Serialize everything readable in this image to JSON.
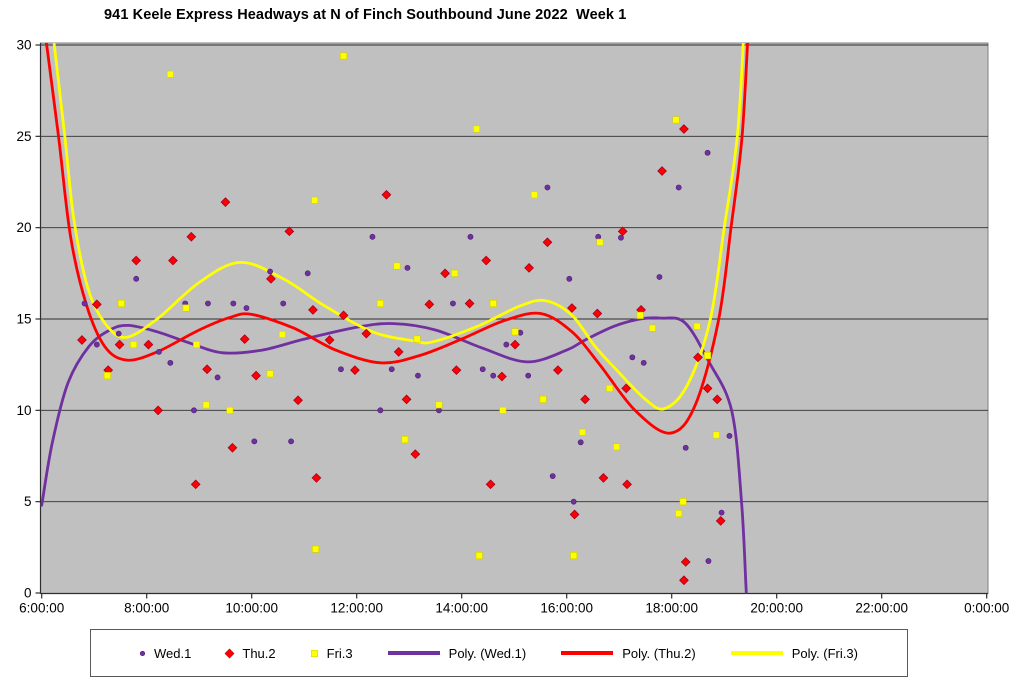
{
  "title": "941 Keele Express Headways at N of Finch Southbound June 2022  Week 1",
  "chart_data": {
    "type": "scatter",
    "title": "941 Keele Express Headways at N of Finch Southbound June 2022  Week 1",
    "plot_background_color": "#C0C0C0",
    "gridline_color": "#2E2E2E",
    "axis_color": "#2E2E2E",
    "border_color": "#808080",
    "legend_position": "bottom",
    "x_axis": {
      "labels": [
        "6:00:00",
        "8:00:00",
        "10:00:00",
        "12:00:00",
        "14:00:00",
        "16:00:00",
        "18:00:00",
        "20:00:00",
        "22:00:00",
        "0:00:00"
      ],
      "start_hour": 6,
      "end_hour": 24,
      "tick_interval_hours": 2
    },
    "y_axis": {
      "min": 0,
      "max": 30,
      "tick_interval": 5,
      "labels": [
        "0",
        "5",
        "10",
        "15",
        "20",
        "25",
        "30"
      ]
    },
    "series": [
      {
        "name": "Wed.1",
        "kind": "points",
        "marker": "dot",
        "color": "#7030A0",
        "edge_color": "#4A2170",
        "points": [
          [
            "6:49",
            15.85
          ],
          [
            "7:03",
            13.6
          ],
          [
            "7:28",
            14.2
          ],
          [
            "7:48",
            17.2
          ],
          [
            "8:14",
            13.2
          ],
          [
            "8:27",
            12.6
          ],
          [
            "8:44",
            15.85
          ],
          [
            "8:54",
            10.0
          ],
          [
            "9:10",
            15.85
          ],
          [
            "9:21",
            11.8
          ],
          [
            "9:39",
            15.85
          ],
          [
            "9:54",
            15.6
          ],
          [
            "10:03",
            8.3
          ],
          [
            "10:21",
            17.6
          ],
          [
            "10:36",
            15.85
          ],
          [
            "10:45",
            8.3
          ],
          [
            "11:04",
            17.5
          ],
          [
            "11:42",
            12.25
          ],
          [
            "12:18",
            19.5
          ],
          [
            "12:27",
            10.0
          ],
          [
            "12:40",
            12.25
          ],
          [
            "12:58",
            17.8
          ],
          [
            "13:10",
            11.9
          ],
          [
            "13:34",
            10.0
          ],
          [
            "13:50",
            15.85
          ],
          [
            "14:10",
            19.5
          ],
          [
            "14:24",
            12.25
          ],
          [
            "14:36",
            11.9
          ],
          [
            "14:51",
            13.6
          ],
          [
            "15:07",
            14.25
          ],
          [
            "15:16",
            11.9
          ],
          [
            "15:38",
            22.2
          ],
          [
            "15:44",
            6.4
          ],
          [
            "16:03",
            17.2
          ],
          [
            "16:08",
            5.0
          ],
          [
            "16:16",
            8.25
          ],
          [
            "16:36",
            19.5
          ],
          [
            "17:02",
            19.45
          ],
          [
            "17:15",
            12.9
          ],
          [
            "17:28",
            12.6
          ],
          [
            "17:46",
            17.3
          ],
          [
            "18:08",
            22.2
          ],
          [
            "18:16",
            7.95
          ],
          [
            "18:41",
            24.1
          ],
          [
            "18:42",
            1.75
          ],
          [
            "18:57",
            4.4
          ],
          [
            "19:06",
            8.6
          ]
        ]
      },
      {
        "name": "Thu.2",
        "kind": "points",
        "marker": "diamond",
        "color": "#FF0000",
        "edge_color": "#A50021",
        "points": [
          [
            "6:46",
            13.85
          ],
          [
            "7:03",
            15.8
          ],
          [
            "7:16",
            12.2
          ],
          [
            "7:29",
            13.6
          ],
          [
            "7:48",
            18.2
          ],
          [
            "8:02",
            13.6
          ],
          [
            "8:13",
            10.0
          ],
          [
            "8:30",
            18.2
          ],
          [
            "8:51",
            19.5
          ],
          [
            "8:56",
            5.95
          ],
          [
            "9:09",
            12.25
          ],
          [
            "9:30",
            21.4
          ],
          [
            "9:38",
            7.95
          ],
          [
            "9:52",
            13.9
          ],
          [
            "10:05",
            11.9
          ],
          [
            "10:22",
            17.2
          ],
          [
            "10:43",
            19.8
          ],
          [
            "10:53",
            10.55
          ],
          [
            "11:10",
            15.5
          ],
          [
            "11:14",
            6.3
          ],
          [
            "11:29",
            13.85
          ],
          [
            "11:45",
            15.2
          ],
          [
            "11:58",
            12.2
          ],
          [
            "12:11",
            14.2
          ],
          [
            "12:34",
            21.8
          ],
          [
            "12:48",
            13.2
          ],
          [
            "12:57",
            10.6
          ],
          [
            "13:07",
            7.6
          ],
          [
            "13:23",
            15.8
          ],
          [
            "13:41",
            17.5
          ],
          [
            "13:54",
            12.2
          ],
          [
            "14:09",
            15.85
          ],
          [
            "14:28",
            18.2
          ],
          [
            "14:33",
            5.95
          ],
          [
            "14:46",
            11.85
          ],
          [
            "15:01",
            13.6
          ],
          [
            "15:17",
            17.8
          ],
          [
            "15:38",
            19.2
          ],
          [
            "15:50",
            12.2
          ],
          [
            "16:06",
            15.6
          ],
          [
            "16:09",
            4.3
          ],
          [
            "16:21",
            10.6
          ],
          [
            "16:35",
            15.3
          ],
          [
            "16:42",
            6.3
          ],
          [
            "17:04",
            19.8
          ],
          [
            "17:08",
            11.2
          ],
          [
            "17:09",
            5.95
          ],
          [
            "17:25",
            15.5
          ],
          [
            "17:49",
            23.1
          ],
          [
            "18:14",
            25.4
          ],
          [
            "18:14",
            0.7
          ],
          [
            "18:16",
            1.7
          ],
          [
            "18:30",
            12.9
          ],
          [
            "18:41",
            11.2
          ],
          [
            "18:52",
            10.6
          ],
          [
            "18:56",
            3.95
          ]
        ]
      },
      {
        "name": "Fri.3",
        "kind": "points",
        "marker": "square",
        "color": "#FFFF00",
        "edge_color": "#CFCF00",
        "points": [
          [
            "7:15",
            11.9
          ],
          [
            "7:31",
            15.85
          ],
          [
            "7:45",
            13.6
          ],
          [
            "8:27",
            28.4
          ],
          [
            "8:45",
            15.6
          ],
          [
            "8:57",
            13.6
          ],
          [
            "9:08",
            10.3
          ],
          [
            "9:35",
            10.0
          ],
          [
            "10:21",
            12.0
          ],
          [
            "10:35",
            14.15
          ],
          [
            "11:12",
            21.5
          ],
          [
            "11:13",
            2.4
          ],
          [
            "11:45",
            29.4
          ],
          [
            "12:27",
            15.85
          ],
          [
            "12:46",
            17.9
          ],
          [
            "12:55",
            8.4
          ],
          [
            "13:09",
            13.9
          ],
          [
            "13:34",
            10.3
          ],
          [
            "13:52",
            17.5
          ],
          [
            "14:17",
            25.4
          ],
          [
            "14:20",
            2.05
          ],
          [
            "14:36",
            15.85
          ],
          [
            "14:47",
            10.0
          ],
          [
            "15:01",
            14.3
          ],
          [
            "15:23",
            21.8
          ],
          [
            "15:33",
            10.6
          ],
          [
            "16:08",
            2.05
          ],
          [
            "16:18",
            8.8
          ],
          [
            "16:38",
            19.2
          ],
          [
            "16:49",
            11.2
          ],
          [
            "16:57",
            8.0
          ],
          [
            "17:24",
            15.2
          ],
          [
            "17:38",
            14.5
          ],
          [
            "18:05",
            25.9
          ],
          [
            "18:08",
            4.35
          ],
          [
            "18:13",
            5.0
          ],
          [
            "18:29",
            14.6
          ],
          [
            "18:41",
            13.0
          ],
          [
            "18:51",
            8.65
          ]
        ]
      },
      {
        "name": "Poly. (Wed.1)",
        "kind": "trendline",
        "color": "#7030A0",
        "curve": [
          [
            6.0,
            4.8
          ],
          [
            6.2,
            8.2
          ],
          [
            6.5,
            11.5
          ],
          [
            6.9,
            13.5
          ],
          [
            7.3,
            14.4
          ],
          [
            7.65,
            14.65
          ],
          [
            8.2,
            14.3
          ],
          [
            8.8,
            13.7
          ],
          [
            9.45,
            13.15
          ],
          [
            10.2,
            13.3
          ],
          [
            11.0,
            13.9
          ],
          [
            12.0,
            14.55
          ],
          [
            12.7,
            14.75
          ],
          [
            13.5,
            14.4
          ],
          [
            14.4,
            13.4
          ],
          [
            15.25,
            12.65
          ],
          [
            16.0,
            13.3
          ],
          [
            16.35,
            13.85
          ],
          [
            16.9,
            14.6
          ],
          [
            17.4,
            15.0
          ],
          [
            17.8,
            15.05
          ],
          [
            18.25,
            14.8
          ],
          [
            18.7,
            12.7
          ],
          [
            19.14,
            10.0
          ],
          [
            19.33,
            5.0
          ],
          [
            19.42,
            0.0
          ],
          [
            19.47,
            -3.0
          ]
        ]
      },
      {
        "name": "Poly. (Thu.2)",
        "kind": "trendline",
        "color": "#FF0000",
        "curve": [
          [
            6.05,
            31.0
          ],
          [
            6.32,
            25.0
          ],
          [
            6.55,
            19.5
          ],
          [
            6.85,
            15.8
          ],
          [
            7.2,
            13.5
          ],
          [
            7.62,
            12.75
          ],
          [
            8.2,
            13.2
          ],
          [
            9.0,
            14.4
          ],
          [
            9.6,
            15.1
          ],
          [
            10.0,
            15.25
          ],
          [
            10.8,
            14.5
          ],
          [
            11.6,
            13.3
          ],
          [
            12.45,
            12.6
          ],
          [
            13.2,
            13.0
          ],
          [
            14.0,
            13.9
          ],
          [
            14.8,
            14.9
          ],
          [
            15.5,
            15.3
          ],
          [
            16.1,
            14.3
          ],
          [
            16.63,
            12.5
          ],
          [
            17.3,
            10.0
          ],
          [
            17.97,
            8.75
          ],
          [
            18.45,
            10.3
          ],
          [
            18.89,
            14.9
          ],
          [
            19.13,
            20.0
          ],
          [
            19.34,
            25.0
          ],
          [
            19.46,
            31.0
          ]
        ]
      },
      {
        "name": "Poly. (Fri.3)",
        "kind": "trendline",
        "color": "#FFFF00",
        "curve": [
          [
            6.2,
            31.0
          ],
          [
            6.44,
            25.0
          ],
          [
            6.62,
            20.3
          ],
          [
            6.9,
            16.5
          ],
          [
            7.25,
            14.6
          ],
          [
            7.62,
            14.0
          ],
          [
            8.2,
            15.0
          ],
          [
            9.0,
            17.0
          ],
          [
            9.78,
            18.1
          ],
          [
            10.6,
            17.2
          ],
          [
            11.4,
            15.7
          ],
          [
            12.3,
            14.3
          ],
          [
            13.1,
            13.8
          ],
          [
            13.45,
            13.75
          ],
          [
            14.3,
            14.6
          ],
          [
            15.1,
            15.7
          ],
          [
            15.6,
            16.0
          ],
          [
            16.1,
            15.2
          ],
          [
            16.54,
            13.5
          ],
          [
            16.92,
            12.3
          ],
          [
            17.5,
            10.6
          ],
          [
            17.87,
            10.1
          ],
          [
            18.3,
            11.4
          ],
          [
            18.73,
            14.9
          ],
          [
            19.0,
            20.0
          ],
          [
            19.25,
            25.0
          ],
          [
            19.38,
            31.0
          ]
        ]
      }
    ]
  }
}
